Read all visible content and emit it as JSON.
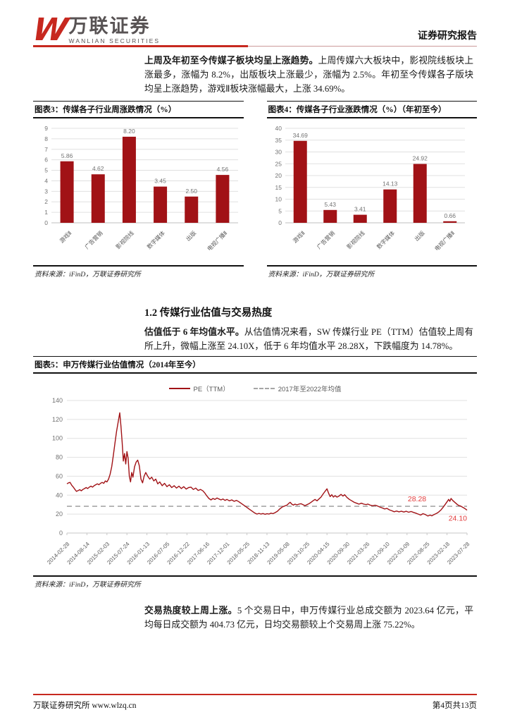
{
  "header": {
    "logo_mark": "W",
    "brand_cn": "万联证券",
    "brand_en": "WANLIAN SECURITIES",
    "report_type": "证券研究报告"
  },
  "intro": {
    "bold": "上周及年初至今传媒子板块均呈上涨趋势。",
    "text": "上周传媒六大板块中，影视院线板块上涨最多，涨幅为 8.2%，出版板块上涨最少，涨幅为 2.5%。年初至今传媒各子版块均呈上涨趋势，游戏Ⅱ板块涨幅最大，上涨 34.69%。"
  },
  "figure3": {
    "title": "图表3：传媒各子行业周涨跌情况（%）",
    "source": "资料来源：iFinD，万联证券研究所"
  },
  "figure4": {
    "title": "图表4：传媒各子行业涨跌情况（%）（年初至今）",
    "source": "资料来源：iFinD，万联证券研究所"
  },
  "section": {
    "heading": "1.2 传媒行业估值与交易热度",
    "para_bold": "估值低于 6 年均值水平。",
    "para_text": "从估值情况来看，SW 传媒行业 PE（TTM）估值较上周有所上升，微幅上涨至 24.10X，低于 6 年均值水平 28.28X，下跌幅度为 14.78%。"
  },
  "figure5": {
    "title": "图表5：申万传媒行业估值情况（2014年至今）",
    "source": "资料来源：iFinD，万联证券研究所"
  },
  "trading": {
    "bold": "交易热度较上周上涨。",
    "text": "5 个交易日中，申万传媒行业总成交额为 2023.64 亿元，平均每日成交额为 404.73 亿元，日均交易额较上个交易周上涨 75.22%。"
  },
  "footer": {
    "left": "万联证券研究所  www.wlzq.cn",
    "right": "第4页共13页"
  },
  "colors": {
    "bar_red": "#a11216",
    "line_red": "#a11216",
    "annotation_red": "#e23b3b",
    "avg_dash_gray": "#a6a6a6",
    "brand_red": "#c7281f",
    "grid_gray": "#e0e0e0",
    "label_gray": "#737373"
  },
  "chart_data": [
    {
      "type": "bar",
      "title": "传媒各子行业周涨跌情况（%）",
      "categories": [
        "游戏Ⅱ",
        "广告营销",
        "影视院线",
        "数字媒体",
        "出版",
        "电视广播Ⅱ"
      ],
      "values": [
        5.86,
        4.62,
        8.2,
        3.45,
        2.5,
        4.56
      ],
      "ylim": [
        0,
        9
      ],
      "ytick": 1,
      "grid": true,
      "legend": "none"
    },
    {
      "type": "bar",
      "title": "传媒各子行业涨跌情况（%）（年初至今）",
      "categories": [
        "游戏Ⅱ",
        "广告营销",
        "影视院线",
        "数字媒体",
        "出版",
        "电视广播Ⅱ"
      ],
      "values": [
        34.69,
        5.43,
        3.41,
        14.13,
        24.92,
        0.66
      ],
      "ylim": [
        0,
        40
      ],
      "ytick": 5,
      "grid": true,
      "legend": "none"
    },
    {
      "type": "line",
      "title": "申万传媒行业估值情况（2014年至今）",
      "ylim": [
        0,
        140
      ],
      "ytick": 20,
      "grid": true,
      "legend": "top-center",
      "x_ticks": [
        "2014-02-28",
        "2014-08-14",
        "2015-02-03",
        "2015-07-24",
        "2016-01-13",
        "2016-07-05",
        "2016-12-22",
        "2017-06-16",
        "2017-12-01",
        "2018-05-25",
        "2018-11-13",
        "2019-05-08",
        "2019-10-25",
        "2020-04-15",
        "2020-09-30",
        "2021-03-26",
        "2021-09-10",
        "2022-03-09",
        "2022-08-25",
        "2023-02-18",
        "2023-07-28"
      ],
      "series": [
        {
          "name": "PE（TTM）",
          "style": "solid",
          "end_value": 24.1,
          "points": [
            [
              0,
              52
            ],
            [
              0.004,
              53
            ],
            [
              0.008,
              53.5
            ],
            [
              0.012,
              50.5
            ],
            [
              0.016,
              48.5
            ],
            [
              0.02,
              46
            ],
            [
              0.024,
              44
            ],
            [
              0.028,
              44.8
            ],
            [
              0.032,
              45.8
            ],
            [
              0.036,
              44.6
            ],
            [
              0.04,
              46
            ],
            [
              0.044,
              47
            ],
            [
              0.048,
              48
            ],
            [
              0.052,
              47
            ],
            [
              0.056,
              48.5
            ],
            [
              0.06,
              49.5
            ],
            [
              0.064,
              48.5
            ],
            [
              0.068,
              50
            ],
            [
              0.072,
              51
            ],
            [
              0.076,
              52
            ],
            [
              0.08,
              51
            ],
            [
              0.084,
              52.5
            ],
            [
              0.088,
              53.5
            ],
            [
              0.092,
              52.5
            ],
            [
              0.096,
              55
            ],
            [
              0.1,
              54
            ],
            [
              0.104,
              57
            ],
            [
              0.108,
              62
            ],
            [
              0.112,
              70
            ],
            [
              0.116,
              82
            ],
            [
              0.12,
              95
            ],
            [
              0.124,
              107
            ],
            [
              0.128,
              117
            ],
            [
              0.132,
              127
            ],
            [
              0.135,
              113
            ],
            [
              0.138,
              96
            ],
            [
              0.141,
              76
            ],
            [
              0.144,
              84
            ],
            [
              0.147,
              73
            ],
            [
              0.15,
              86
            ],
            [
              0.153,
              79
            ],
            [
              0.156,
              60
            ],
            [
              0.159,
              54
            ],
            [
              0.162,
              64
            ],
            [
              0.165,
              59
            ],
            [
              0.169,
              70
            ],
            [
              0.173,
              75
            ],
            [
              0.177,
              77
            ],
            [
              0.181,
              71
            ],
            [
              0.185,
              57
            ],
            [
              0.189,
              53
            ],
            [
              0.193,
              60
            ],
            [
              0.197,
              64
            ],
            [
              0.202,
              60
            ],
            [
              0.207,
              57
            ],
            [
              0.212,
              59
            ],
            [
              0.217,
              55
            ],
            [
              0.222,
              57
            ],
            [
              0.227,
              52
            ],
            [
              0.232,
              54
            ],
            [
              0.238,
              50
            ],
            [
              0.244,
              52.5
            ],
            [
              0.25,
              49
            ],
            [
              0.256,
              51
            ],
            [
              0.262,
              48
            ],
            [
              0.268,
              50
            ],
            [
              0.274,
              47.5
            ],
            [
              0.28,
              49.5
            ],
            [
              0.286,
              47
            ],
            [
              0.292,
              49
            ],
            [
              0.298,
              46.5
            ],
            [
              0.304,
              48
            ],
            [
              0.31,
              48.5
            ],
            [
              0.316,
              46
            ],
            [
              0.322,
              47.5
            ],
            [
              0.328,
              45
            ],
            [
              0.334,
              46
            ],
            [
              0.34,
              44.5
            ],
            [
              0.345,
              42
            ],
            [
              0.35,
              39
            ],
            [
              0.355,
              36.5
            ],
            [
              0.36,
              35
            ],
            [
              0.365,
              36.5
            ],
            [
              0.37,
              35.5
            ],
            [
              0.375,
              37
            ],
            [
              0.38,
              36
            ],
            [
              0.385,
              35
            ],
            [
              0.39,
              36
            ],
            [
              0.395,
              34.5
            ],
            [
              0.4,
              35.5
            ],
            [
              0.406,
              34
            ],
            [
              0.412,
              35
            ],
            [
              0.418,
              33.5
            ],
            [
              0.424,
              34.5
            ],
            [
              0.43,
              33
            ],
            [
              0.435,
              31.5
            ],
            [
              0.44,
              30
            ],
            [
              0.445,
              28.5
            ],
            [
              0.45,
              27
            ],
            [
              0.455,
              25.5
            ],
            [
              0.46,
              24
            ],
            [
              0.465,
              22.5
            ],
            [
              0.47,
              21
            ],
            [
              0.475,
              20
            ],
            [
              0.48,
              20.8
            ],
            [
              0.485,
              20
            ],
            [
              0.49,
              20.6
            ],
            [
              0.495,
              19.8
            ],
            [
              0.5,
              20.4
            ],
            [
              0.505,
              20
            ],
            [
              0.51,
              21
            ],
            [
              0.515,
              20.5
            ],
            [
              0.52,
              21.5
            ],
            [
              0.526,
              23
            ],
            [
              0.532,
              25.5
            ],
            [
              0.538,
              27.5
            ],
            [
              0.544,
              28.5
            ],
            [
              0.55,
              29.5
            ],
            [
              0.555,
              31.5
            ],
            [
              0.558,
              32.5
            ],
            [
              0.562,
              30.5
            ],
            [
              0.566,
              29.5
            ],
            [
              0.57,
              30.5
            ],
            [
              0.575,
              29.8
            ],
            [
              0.58,
              30.5
            ],
            [
              0.585,
              31
            ],
            [
              0.59,
              30
            ],
            [
              0.595,
              29
            ],
            [
              0.6,
              30
            ],
            [
              0.605,
              31
            ],
            [
              0.61,
              32.5
            ],
            [
              0.615,
              34
            ],
            [
              0.62,
              35.5
            ],
            [
              0.625,
              34
            ],
            [
              0.63,
              36
            ],
            [
              0.635,
              38
            ],
            [
              0.64,
              41
            ],
            [
              0.645,
              44
            ],
            [
              0.65,
              46.7
            ],
            [
              0.654,
              42
            ],
            [
              0.658,
              38.5
            ],
            [
              0.662,
              40.5
            ],
            [
              0.666,
              38
            ],
            [
              0.67,
              39.5
            ],
            [
              0.675,
              38
            ],
            [
              0.68,
              39
            ],
            [
              0.685,
              40.8
            ],
            [
              0.69,
              39
            ],
            [
              0.694,
              40.5
            ],
            [
              0.7,
              37.5
            ],
            [
              0.706,
              35.5
            ],
            [
              0.712,
              34
            ],
            [
              0.718,
              32.5
            ],
            [
              0.724,
              31.5
            ],
            [
              0.73,
              30.5
            ],
            [
              0.736,
              31.5
            ],
            [
              0.742,
              30.5
            ],
            [
              0.748,
              30
            ],
            [
              0.752,
              30.6
            ],
            [
              0.758,
              29.5
            ],
            [
              0.764,
              28.8
            ],
            [
              0.77,
              29.4
            ],
            [
              0.776,
              28.6
            ],
            [
              0.782,
              27.5
            ],
            [
              0.788,
              26.5
            ],
            [
              0.794,
              25.5
            ],
            [
              0.8,
              26
            ],
            [
              0.806,
              24.5
            ],
            [
              0.812,
              23.5
            ],
            [
              0.818,
              22.5
            ],
            [
              0.824,
              23.2
            ],
            [
              0.83,
              22.4
            ],
            [
              0.836,
              23
            ],
            [
              0.842,
              22.2
            ],
            [
              0.848,
              23
            ],
            [
              0.854,
              22
            ],
            [
              0.86,
              22.8
            ],
            [
              0.866,
              21.8
            ],
            [
              0.872,
              21
            ],
            [
              0.878,
              20
            ],
            [
              0.884,
              19
            ],
            [
              0.89,
              20.5
            ],
            [
              0.896,
              19.5
            ],
            [
              0.902,
              18
            ],
            [
              0.908,
              19
            ],
            [
              0.912,
              18.2
            ],
            [
              0.916,
              19.2
            ],
            [
              0.92,
              20
            ],
            [
              0.925,
              21
            ],
            [
              0.93,
              22.5
            ],
            [
              0.935,
              24.5
            ],
            [
              0.94,
              27
            ],
            [
              0.945,
              30
            ],
            [
              0.95,
              33
            ],
            [
              0.954,
              35.5
            ],
            [
              0.957,
              33.5
            ],
            [
              0.96,
              36.5
            ],
            [
              0.964,
              34.5
            ],
            [
              0.968,
              33
            ],
            [
              0.972,
              31.5
            ],
            [
              0.976,
              30
            ],
            [
              0.98,
              29
            ],
            [
              0.984,
              28.5
            ],
            [
              0.988,
              27.5
            ],
            [
              0.992,
              26.5
            ],
            [
              0.996,
              25.5
            ],
            [
              1,
              24.1
            ]
          ]
        },
        {
          "name": "2017年至2022年均值",
          "style": "dashed",
          "value": 28.28
        }
      ],
      "annotations": [
        {
          "text": "28.28",
          "color": "#e23b3b"
        },
        {
          "text": "24.10",
          "color": "#e23b3b"
        }
      ]
    }
  ]
}
